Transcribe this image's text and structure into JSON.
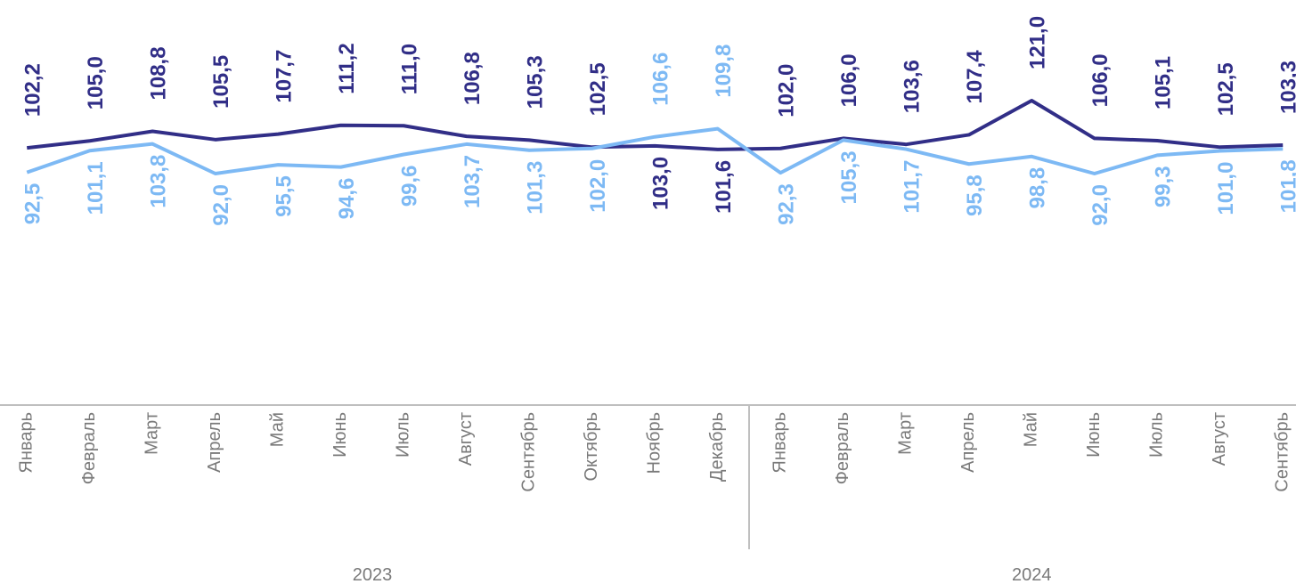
{
  "chart_data": {
    "type": "line",
    "categories": [
      "Январь",
      "Февраль",
      "Март",
      "Апрель",
      "Май",
      "Июнь",
      "Июль",
      "Август",
      "Сентябрь",
      "Октябрь",
      "Ноябрь",
      "Декабрь",
      "Январь",
      "Февраль",
      "Март",
      "Апрель",
      "Май",
      "Июнь",
      "Июль",
      "Август",
      "Сентябрь"
    ],
    "year_groups": [
      {
        "label": "2023",
        "size": 12
      },
      {
        "label": "2024",
        "size": 9
      }
    ],
    "series": [
      {
        "color": "#312e87",
        "values": [
          102.2,
          105.0,
          108.8,
          105.5,
          107.7,
          111.2,
          111.0,
          106.8,
          105.3,
          102.5,
          103.0,
          101.6,
          102.0,
          106.0,
          103.6,
          107.4,
          121.0,
          106.0,
          105.1,
          102.5,
          103.3
        ],
        "value_labels": [
          "102,2",
          "105,0",
          "108,8",
          "105,5",
          "107,7",
          "111,2",
          "111,0",
          "106,8",
          "105,3",
          "102,5",
          "103,0",
          "101,6",
          "102,0",
          "106,0",
          "103,6",
          "107,4",
          "121,0",
          "106,0",
          "105,1",
          "102,5",
          "103,3"
        ]
      },
      {
        "color": "#7db9f4",
        "values": [
          92.5,
          101.1,
          103.8,
          92.0,
          95.5,
          94.6,
          99.6,
          103.7,
          101.3,
          102.0,
          106.6,
          109.8,
          92.3,
          105.3,
          101.7,
          95.8,
          98.8,
          92.0,
          99.3,
          101.0,
          101.8
        ],
        "value_labels": [
          "92,5",
          "101,1",
          "103,8",
          "92,0",
          "95,5",
          "94,6",
          "99,6",
          "103,7",
          "101,3",
          "102,0",
          "106,6",
          "109,8",
          "92,3",
          "105,3",
          "101,7",
          "95,8",
          "98,8",
          "92,0",
          "99,3",
          "101,0",
          "101,8"
        ]
      }
    ]
  }
}
